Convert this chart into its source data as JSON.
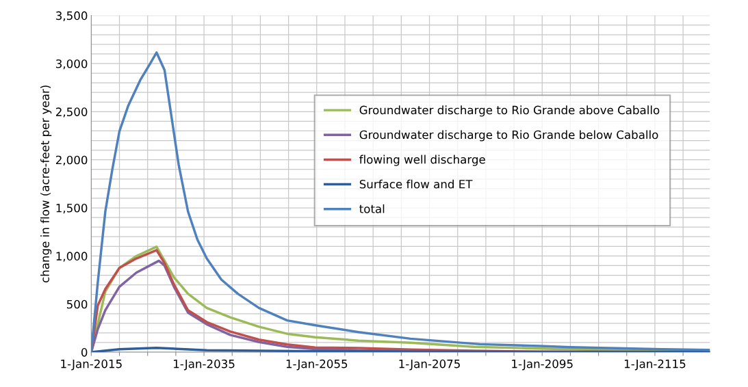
{
  "chart_data": {
    "type": "line",
    "ylabel": "change in flow (acre-feet per year)",
    "xlim": [
      "2015-01-01",
      "2124-10-01"
    ],
    "xticks": [
      {
        "value": "2015-01-01",
        "label": "1-Jan-2015"
      },
      {
        "value": "2020-01-01",
        "label": null
      },
      {
        "value": "2025-01-01",
        "label": null
      },
      {
        "value": "2030-01-01",
        "label": null
      },
      {
        "value": "2035-01-01",
        "label": "1-Jan-2035"
      },
      {
        "value": "2040-01-01",
        "label": null
      },
      {
        "value": "2045-01-01",
        "label": null
      },
      {
        "value": "2050-01-01",
        "label": null
      },
      {
        "value": "2055-01-01",
        "label": "1-Jan-2055"
      },
      {
        "value": "2060-01-01",
        "label": null
      },
      {
        "value": "2065-01-01",
        "label": null
      },
      {
        "value": "2070-01-01",
        "label": null
      },
      {
        "value": "2075-01-01",
        "label": "1-Jan-2075"
      },
      {
        "value": "2080-01-01",
        "label": null
      },
      {
        "value": "2085-01-01",
        "label": null
      },
      {
        "value": "2090-01-01",
        "label": null
      },
      {
        "value": "2095-01-01",
        "label": "1-Jan-2095"
      },
      {
        "value": "2100-01-01",
        "label": null
      },
      {
        "value": "2105-01-01",
        "label": null
      },
      {
        "value": "2110-01-01",
        "label": null
      },
      {
        "value": "2115-01-01",
        "label": "1-Jan-2115"
      },
      {
        "value": "2120-01-01",
        "label": null
      }
    ],
    "ylim": [
      0,
      3500
    ],
    "yticks": [
      0,
      {
        "value": 100,
        "label": null
      },
      {
        "value": 200,
        "label": null
      },
      {
        "value": 300,
        "label": null
      },
      {
        "value": 400,
        "label": null
      },
      500,
      {
        "value": 600,
        "label": null
      },
      {
        "value": 700,
        "label": null
      },
      {
        "value": 800,
        "label": null
      },
      {
        "value": 900,
        "label": null
      },
      {
        "value": 1000,
        "label": "1,000"
      },
      {
        "value": 1100,
        "label": null
      },
      {
        "value": 1200,
        "label": null
      },
      {
        "value": 1300,
        "label": null
      },
      {
        "value": 1400,
        "label": null
      },
      {
        "value": 1500,
        "label": "1,500"
      },
      {
        "value": 1600,
        "label": null
      },
      {
        "value": 1700,
        "label": null
      },
      {
        "value": 1800,
        "label": null
      },
      {
        "value": 1900,
        "label": null
      },
      {
        "value": 2000,
        "label": "2,000"
      },
      {
        "value": 2100,
        "label": null
      },
      {
        "value": 2200,
        "label": null
      },
      {
        "value": 2300,
        "label": null
      },
      {
        "value": 2400,
        "label": null
      },
      {
        "value": 2500,
        "label": "2,500"
      },
      {
        "value": 2600,
        "label": null
      },
      {
        "value": 2700,
        "label": null
      },
      {
        "value": 2800,
        "label": null
      },
      {
        "value": 2900,
        "label": null
      },
      {
        "value": 3000,
        "label": "3,000"
      },
      {
        "value": 3100,
        "label": null
      },
      {
        "value": 3200,
        "label": null
      },
      {
        "value": 3300,
        "label": null
      },
      {
        "value": 3400,
        "label": null
      },
      {
        "value": 3500,
        "label": "3,500"
      }
    ],
    "grid": true,
    "legend": "top right",
    "marker": "none",
    "line_style": "solid",
    "series": [
      {
        "name": "Groundwater discharge to Rio Grande above Caballo",
        "color": "#9bbb59",
        "x": [
          "2015-01",
          "2017-07",
          "2020-01",
          "2023-01",
          "2026-08",
          "2028-01",
          "2029-09",
          "2032-03",
          "2035-07",
          "2039-09",
          "2044-10",
          "2049-10",
          "2054-10",
          "2062-06",
          "2071-09",
          "2082-12",
          "2095-10",
          "2112-08",
          "2124-10"
        ],
        "values": [
          0,
          631,
          876,
          999,
          1096,
          950,
          778,
          607,
          460,
          362,
          264,
          191,
          155,
          120,
          98,
          55,
          36,
          17,
          12
        ]
      },
      {
        "name": "Groundwater discharge to Rio Grande below Caballo",
        "color": "#8064a2",
        "x": [
          "2015-01",
          "2016-03",
          "2017-07",
          "2020-01",
          "2023-01",
          "2027-01",
          "2028-01",
          "2029-09",
          "2032-03",
          "2035-07",
          "2039-09",
          "2044-10",
          "2049-10",
          "2054-10",
          "2062-06",
          "2071-09",
          "2082-12",
          "2094-07",
          "2124-10"
        ],
        "values": [
          0,
          240,
          436,
          680,
          827,
          950,
          900,
          680,
          411,
          289,
          179,
          105,
          56,
          32,
          20,
          12,
          6,
          3,
          1
        ]
      },
      {
        "name": "flowing well discharge",
        "color": "#c0504d",
        "x": [
          "2015-01",
          "2016-03",
          "2017-07",
          "2020-01",
          "2023-01",
          "2026-08",
          "2028-01",
          "2029-09",
          "2032-03",
          "2035-07",
          "2039-09",
          "2044-10",
          "2049-10",
          "2054-10",
          "2062-06",
          "2071-09",
          "2082-12",
          "2094-07",
          "2124-10"
        ],
        "values": [
          0,
          485,
          656,
          876,
          974,
          1060,
          925,
          705,
          436,
          313,
          215,
          130,
          81,
          49,
          44,
          27,
          14,
          5,
          2
        ]
      },
      {
        "name": "Surface flow and ET",
        "color": "#2e5d99",
        "x": [
          "2015-01",
          "2020-01",
          "2026-08",
          "2035-07",
          "2055-01",
          "2075-01",
          "2124-10"
        ],
        "values": [
          0,
          30,
          45,
          20,
          10,
          5,
          2
        ]
      },
      {
        "name": "total",
        "color": "#4f81bd",
        "x": [
          "2015-01",
          "2016-03",
          "2017-07",
          "2018-10",
          "2020-01",
          "2021-08",
          "2023-10",
          "2025-07",
          "2026-08",
          "2028-01",
          "2029-04",
          "2030-07",
          "2032-03",
          "2033-11",
          "2035-07",
          "2038-02",
          "2041-01",
          "2044-10",
          "2049-10",
          "2054-10",
          "2062-06",
          "2071-09",
          "2083-12",
          "2094-07",
          "2100-02",
          "2116-04",
          "2124-10"
        ],
        "values": [
          0,
          729,
          1463,
          1904,
          2296,
          2565,
          2834,
          3005,
          3115,
          2932,
          2442,
          1953,
          1463,
          1170,
          974,
          754,
          607,
          460,
          330,
          280,
          208,
          140,
          83,
          64,
          52,
          31,
          24
        ]
      }
    ]
  }
}
